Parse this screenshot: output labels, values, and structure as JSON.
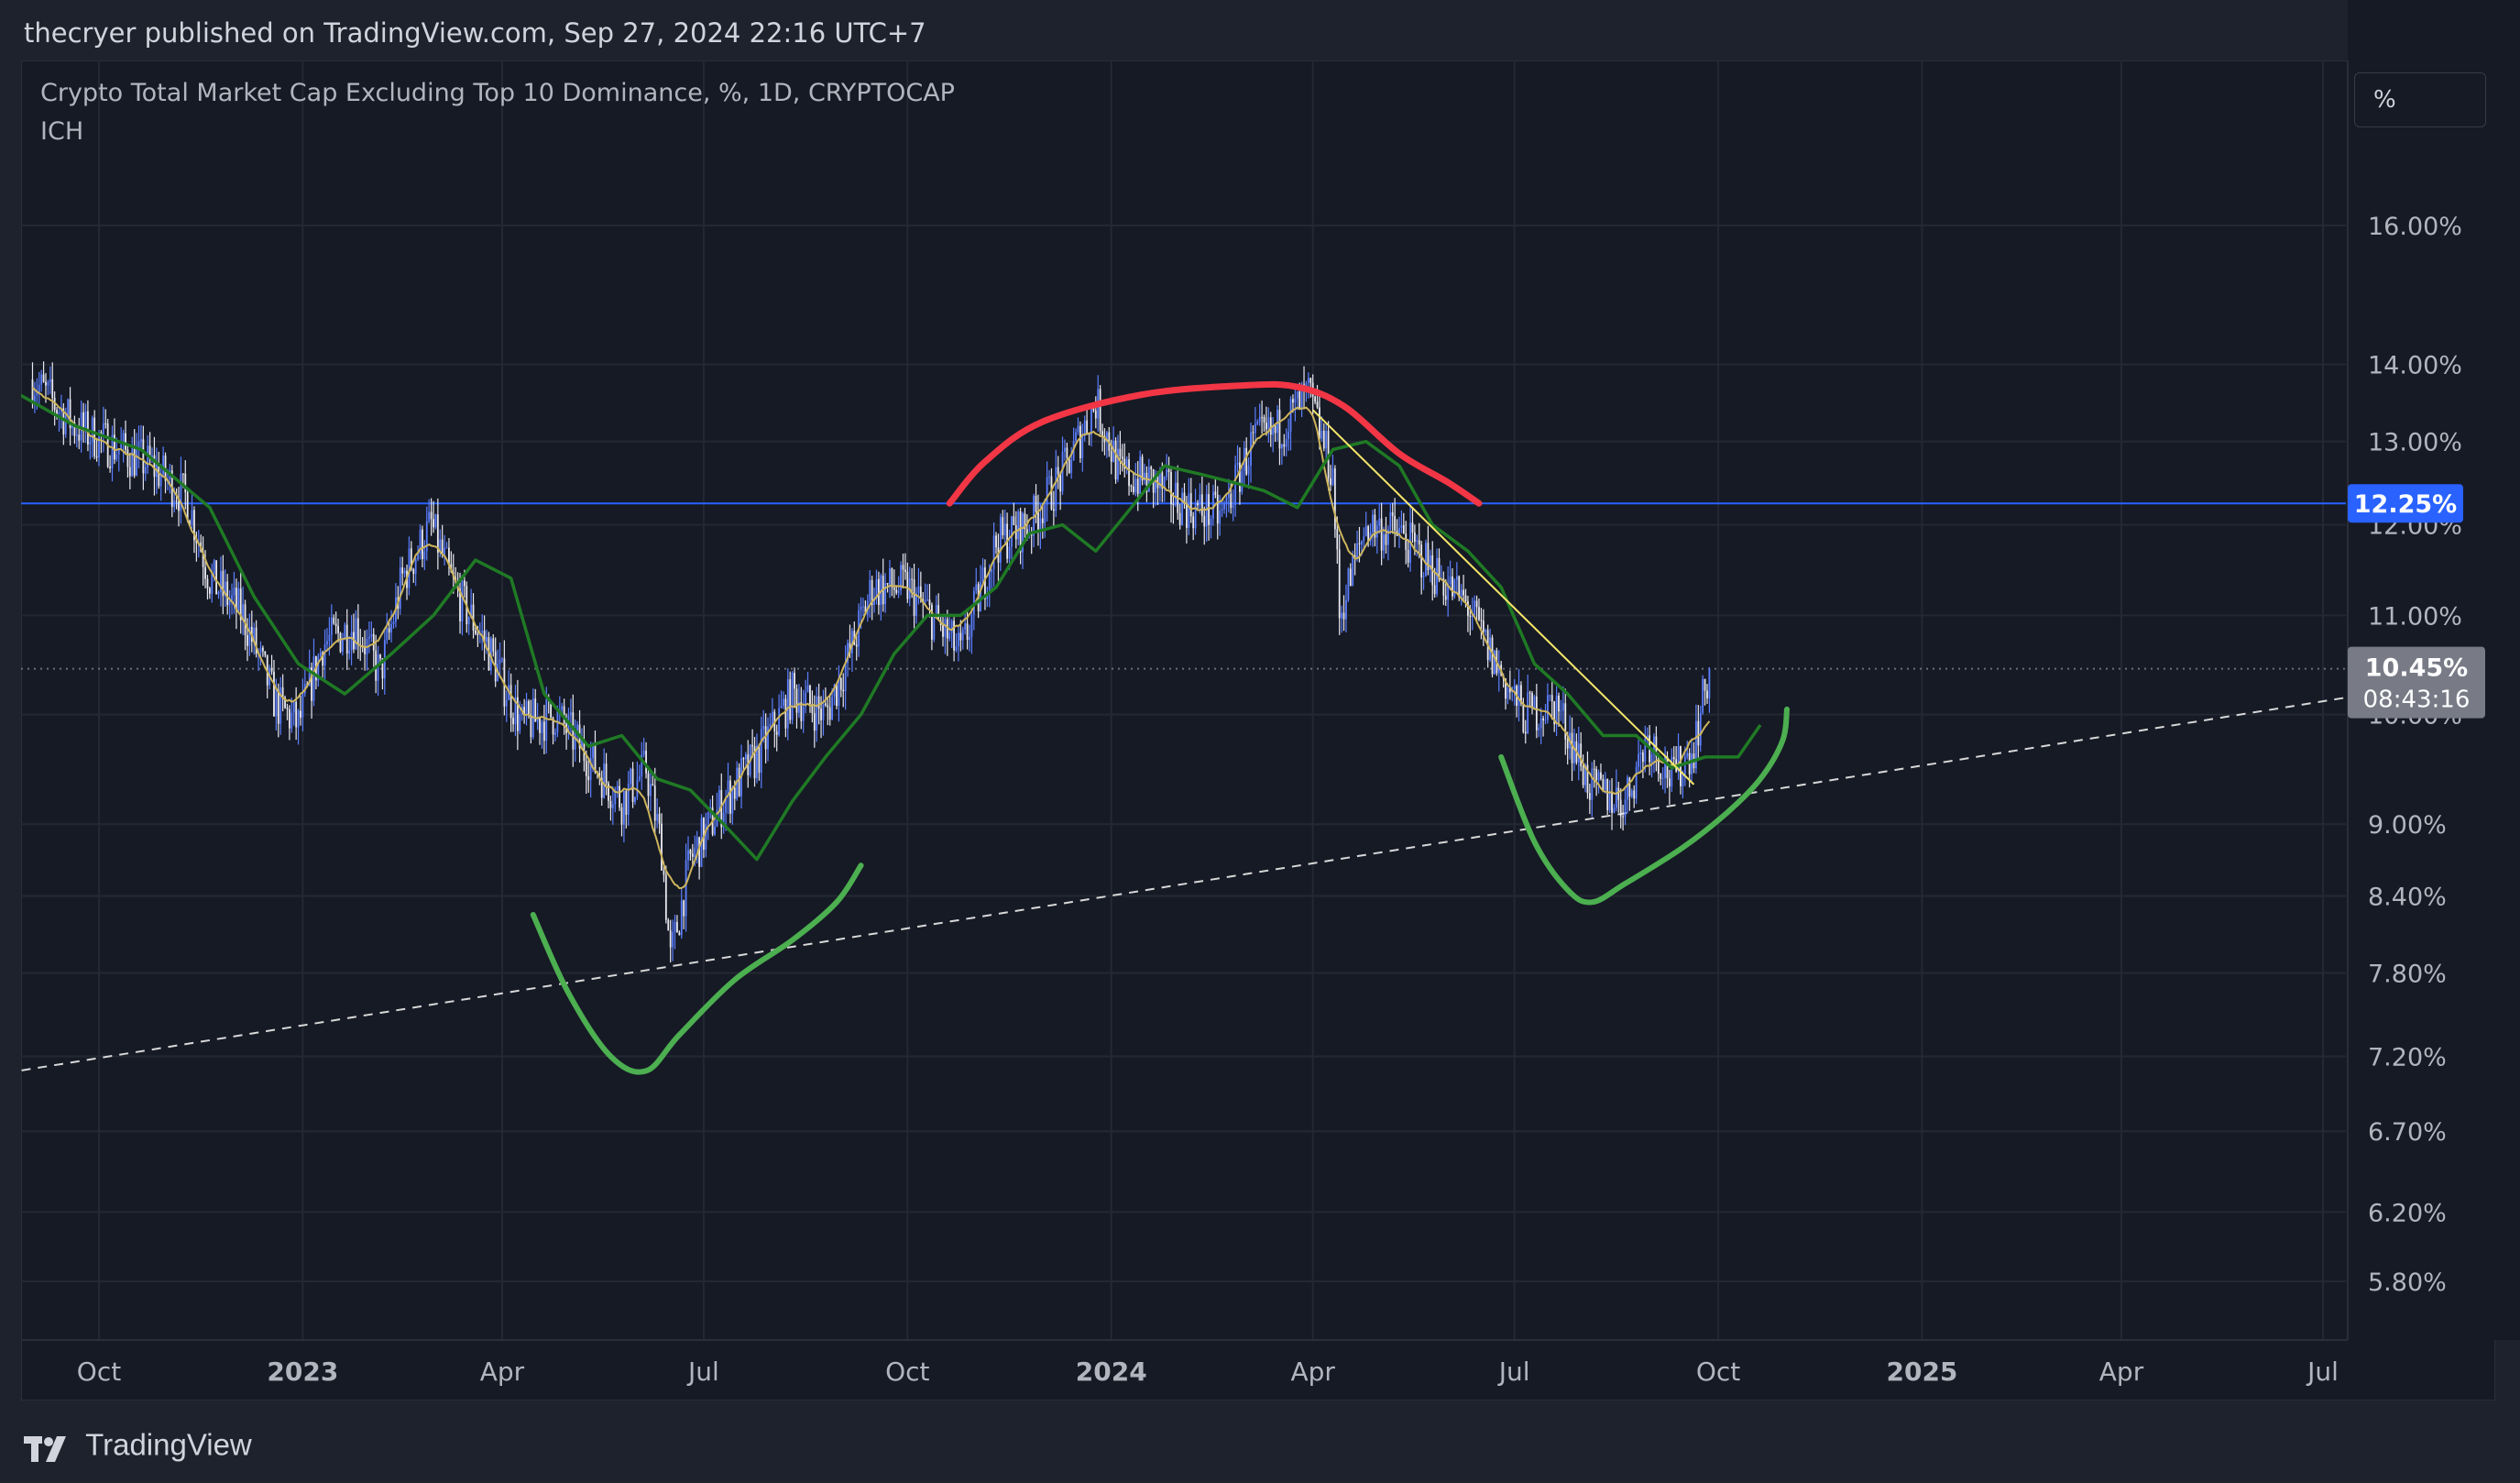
{
  "header": {
    "published": "thecryer published on TradingView.com, Sep 27, 2024 22:16 UTC+7"
  },
  "legend": {
    "symbol": "Crypto Total Market Cap Excluding Top 10 Dominance, %, 1D, CRYPTOCAP",
    "indicator": "ICH"
  },
  "scale_button": {
    "label": "%"
  },
  "footer": {
    "brand": "TradingView"
  },
  "colors": {
    "background": "#161a25",
    "up_candle": "#5b7fff",
    "down_candle": "#e8e8f0",
    "base_line": "#cdb55c",
    "lagging_span": "#1f7a24",
    "horizontal_level": "#2962ff",
    "red_arc": "#f23645",
    "green_arc": "#4caf50",
    "trendline": "#f5e66a"
  },
  "chart_data": {
    "type": "candlestick",
    "x_axis": {
      "ticks": [
        {
          "date": "2022-10-01",
          "label": "Oct",
          "bold": false
        },
        {
          "date": "2023-01-01",
          "label": "2023",
          "bold": true
        },
        {
          "date": "2023-04-01",
          "label": "Apr",
          "bold": false
        },
        {
          "date": "2023-07-01",
          "label": "Jul",
          "bold": false
        },
        {
          "date": "2023-10-01",
          "label": "Oct",
          "bold": false
        },
        {
          "date": "2024-01-01",
          "label": "2024",
          "bold": true
        },
        {
          "date": "2024-04-01",
          "label": "Apr",
          "bold": false
        },
        {
          "date": "2024-07-01",
          "label": "Jul",
          "bold": false
        },
        {
          "date": "2024-10-01",
          "label": "Oct",
          "bold": false
        },
        {
          "date": "2025-01-01",
          "label": "2025",
          "bold": true
        },
        {
          "date": "2025-04-01",
          "label": "Apr",
          "bold": false
        },
        {
          "date": "2025-07-01",
          "label": "Jul",
          "bold": false
        }
      ]
    },
    "y_axis": {
      "scale": "log",
      "ticks": [
        {
          "value": 16.0,
          "label": "16.00%"
        },
        {
          "value": 14.0,
          "label": "14.00%"
        },
        {
          "value": 13.0,
          "label": "13.00%"
        },
        {
          "value": 12.0,
          "label": "12.00%"
        },
        {
          "value": 11.0,
          "label": "11.00%"
        },
        {
          "value": 10.0,
          "label": "10.00%"
        },
        {
          "value": 9.0,
          "label": "9.00%"
        },
        {
          "value": 8.4,
          "label": "8.40%"
        },
        {
          "value": 7.8,
          "label": "7.80%"
        },
        {
          "value": 7.2,
          "label": "7.20%"
        },
        {
          "value": 6.7,
          "label": "6.70%"
        },
        {
          "value": 6.2,
          "label": "6.20%"
        },
        {
          "value": 5.8,
          "label": "5.80%"
        }
      ]
    },
    "last_price": {
      "value": 10.45,
      "label": "10.45%",
      "countdown": "08:43:16"
    },
    "horizontal_level": {
      "value": 12.25,
      "label": "12.25%"
    },
    "price_path": [
      [
        "2022-09-01",
        13.8
      ],
      [
        "2022-09-20",
        13.2
      ],
      [
        "2022-10-10",
        12.9
      ],
      [
        "2022-10-25",
        12.7
      ],
      [
        "2022-11-10",
        12.3
      ],
      [
        "2022-11-20",
        11.4
      ],
      [
        "2022-12-05",
        11.0
      ],
      [
        "2022-12-20",
        10.1
      ],
      [
        "2022-12-30",
        9.9
      ],
      [
        "2023-01-10",
        10.7
      ],
      [
        "2023-01-25",
        10.9
      ],
      [
        "2023-02-05",
        10.4
      ],
      [
        "2023-02-15",
        11.4
      ],
      [
        "2023-02-28",
        12.0
      ],
      [
        "2023-03-10",
        11.3
      ],
      [
        "2023-03-25",
        10.7
      ],
      [
        "2023-04-10",
        9.9
      ],
      [
        "2023-04-25",
        10.0
      ],
      [
        "2023-05-10",
        9.6
      ],
      [
        "2023-05-25",
        9.2
      ],
      [
        "2023-06-05",
        9.5
      ],
      [
        "2023-06-12",
        8.8
      ],
      [
        "2023-06-16",
        7.9
      ],
      [
        "2023-06-25",
        8.7
      ],
      [
        "2023-07-10",
        9.2
      ],
      [
        "2023-07-25",
        9.6
      ],
      [
        "2023-08-10",
        10.2
      ],
      [
        "2023-08-25",
        10.0
      ],
      [
        "2023-09-05",
        10.6
      ],
      [
        "2023-09-15",
        11.3
      ],
      [
        "2023-10-01",
        11.3
      ],
      [
        "2023-10-15",
        10.9
      ],
      [
        "2023-10-25",
        10.6
      ],
      [
        "2023-11-10",
        11.8
      ],
      [
        "2023-11-25",
        12.0
      ],
      [
        "2023-12-10",
        12.6
      ],
      [
        "2023-12-25",
        13.5
      ],
      [
        "2024-01-05",
        12.6
      ],
      [
        "2024-01-20",
        12.5
      ],
      [
        "2024-02-05",
        12.2
      ],
      [
        "2024-02-20",
        12.1
      ],
      [
        "2024-03-05",
        13.0
      ],
      [
        "2024-03-15",
        13.1
      ],
      [
        "2024-03-30",
        13.6
      ],
      [
        "2024-04-10",
        12.6
      ],
      [
        "2024-04-13",
        11.0
      ],
      [
        "2024-04-25",
        12.0
      ],
      [
        "2024-05-10",
        11.9
      ],
      [
        "2024-05-25",
        11.5
      ],
      [
        "2024-06-10",
        11.1
      ],
      [
        "2024-06-20",
        10.6
      ],
      [
        "2024-07-05",
        10.0
      ],
      [
        "2024-07-20",
        10.1
      ],
      [
        "2024-08-05",
        9.3
      ],
      [
        "2024-08-20",
        9.2
      ],
      [
        "2024-08-30",
        9.8
      ],
      [
        "2024-09-10",
        9.4
      ],
      [
        "2024-09-20",
        9.7
      ],
      [
        "2024-09-27",
        10.45
      ]
    ],
    "lagging_span": [
      [
        "2022-08-20",
        13.7
      ],
      [
        "2022-09-20",
        13.2
      ],
      [
        "2022-10-20",
        12.9
      ],
      [
        "2022-11-20",
        12.2
      ],
      [
        "2022-12-10",
        11.2
      ],
      [
        "2022-12-30",
        10.5
      ],
      [
        "2023-01-20",
        10.2
      ],
      [
        "2023-02-10",
        10.6
      ],
      [
        "2023-03-01",
        11.0
      ],
      [
        "2023-03-20",
        11.6
      ],
      [
        "2023-04-05",
        11.4
      ],
      [
        "2023-04-20",
        10.2
      ],
      [
        "2023-05-10",
        9.7
      ],
      [
        "2023-05-25",
        9.8
      ],
      [
        "2023-06-10",
        9.4
      ],
      [
        "2023-06-25",
        9.3
      ],
      [
        "2023-07-10",
        9.0
      ],
      [
        "2023-07-25",
        8.7
      ],
      [
        "2023-08-10",
        9.2
      ],
      [
        "2023-08-25",
        9.6
      ],
      [
        "2023-09-10",
        10.0
      ],
      [
        "2023-09-25",
        10.6
      ],
      [
        "2023-10-10",
        11.0
      ],
      [
        "2023-10-25",
        11.0
      ],
      [
        "2023-11-10",
        11.3
      ],
      [
        "2023-11-25",
        11.9
      ],
      [
        "2023-12-10",
        12.0
      ],
      [
        "2023-12-25",
        11.7
      ],
      [
        "2024-01-10",
        12.2
      ],
      [
        "2024-01-25",
        12.7
      ],
      [
        "2024-02-10",
        12.6
      ],
      [
        "2024-02-25",
        12.5
      ],
      [
        "2024-03-10",
        12.4
      ],
      [
        "2024-03-25",
        12.2
      ],
      [
        "2024-04-10",
        12.9
      ],
      [
        "2024-04-25",
        13.0
      ],
      [
        "2024-05-10",
        12.7
      ],
      [
        "2024-05-25",
        12.0
      ],
      [
        "2024-06-10",
        11.7
      ],
      [
        "2024-06-25",
        11.3
      ],
      [
        "2024-07-10",
        10.5
      ],
      [
        "2024-07-25",
        10.2
      ],
      [
        "2024-08-10",
        9.8
      ],
      [
        "2024-08-25",
        9.8
      ],
      [
        "2024-09-10",
        9.5
      ],
      [
        "2024-09-25",
        9.6
      ],
      [
        "2024-10-10",
        9.6
      ],
      [
        "2024-10-20",
        9.9
      ]
    ],
    "drawings": {
      "dashed_trendline": {
        "from": [
          "2022-08-05",
          7.05
        ],
        "to": [
          "2025-08-05",
          10.25
        ]
      },
      "yellow_trendline": {
        "from": [
          "2024-04-01",
          13.4
        ],
        "to": [
          "2024-09-20",
          9.35
        ]
      },
      "red_arc": [
        [
          "2023-10-20",
          12.25
        ],
        [
          "2023-11-05",
          12.75
        ],
        [
          "2023-12-01",
          13.25
        ],
        [
          "2024-01-15",
          13.6
        ],
        [
          "2024-03-01",
          13.72
        ],
        [
          "2024-03-25",
          13.7
        ],
        [
          "2024-04-15",
          13.45
        ],
        [
          "2024-05-10",
          12.85
        ],
        [
          "2024-06-01",
          12.5
        ],
        [
          "2024-06-15",
          12.25
        ]
      ],
      "green_arc_1": [
        [
          "2023-04-15",
          8.25
        ],
        [
          "2023-05-01",
          7.65
        ],
        [
          "2023-05-20",
          7.2
        ],
        [
          "2023-06-05",
          7.1
        ],
        [
          "2023-06-20",
          7.35
        ],
        [
          "2023-07-15",
          7.75
        ],
        [
          "2023-08-10",
          8.05
        ],
        [
          "2023-08-30",
          8.35
        ],
        [
          "2023-09-10",
          8.65
        ]
      ],
      "green_arc_2": [
        [
          "2024-06-25",
          9.6
        ],
        [
          "2024-07-10",
          8.85
        ],
        [
          "2024-07-25",
          8.45
        ],
        [
          "2024-08-05",
          8.35
        ],
        [
          "2024-08-20",
          8.5
        ],
        [
          "2024-09-15",
          8.8
        ],
        [
          "2024-10-05",
          9.1
        ],
        [
          "2024-10-20",
          9.4
        ],
        [
          "2024-10-30",
          9.75
        ],
        [
          "2024-11-01",
          10.05
        ]
      ]
    }
  }
}
